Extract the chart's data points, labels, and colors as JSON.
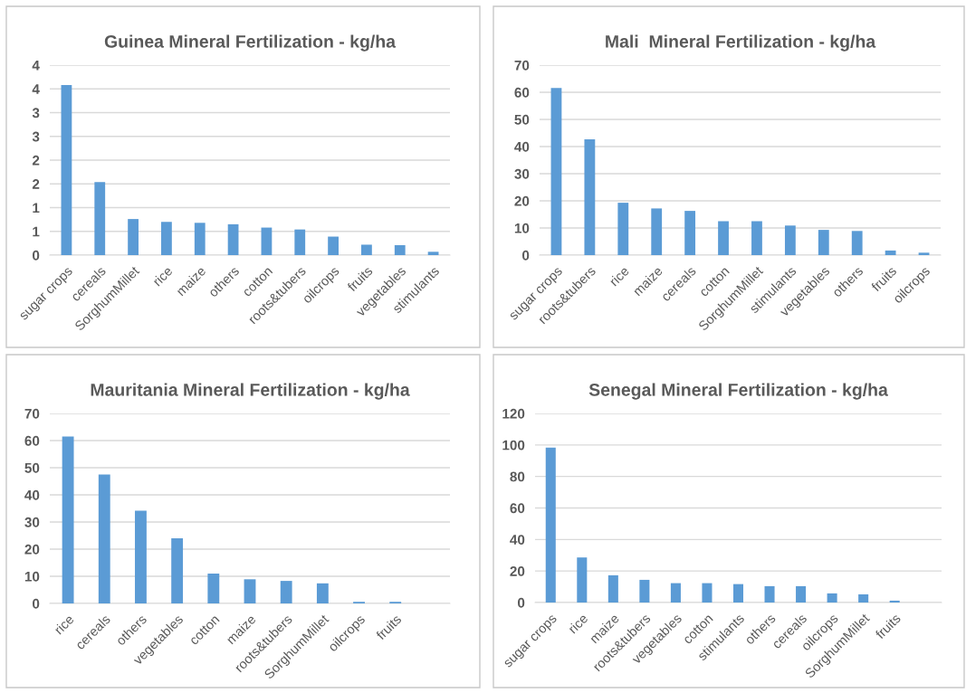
{
  "chart_data": [
    {
      "type": "bar",
      "title": "Guinea Mineral Fertilization - kg/ha",
      "categories": [
        "sugar crops",
        "cereals",
        "SorghumMillet",
        "rice",
        "maize",
        "others",
        "cotton",
        "roots&tubers",
        "oilcrops",
        "fruits",
        "vegetables",
        "stimulants"
      ],
      "values": [
        3.58,
        1.54,
        0.76,
        0.7,
        0.68,
        0.65,
        0.58,
        0.54,
        0.39,
        0.22,
        0.21,
        0.07
      ],
      "color": "#5b9bd5",
      "ylim": [
        0,
        4
      ],
      "yticks": [
        0,
        {
          "value": 0.5,
          "label": "1"
        },
        1,
        {
          "value": 1.5,
          "label": "2"
        },
        2,
        {
          "value": 2.5,
          "label": "3"
        },
        3,
        {
          "value": 3.5,
          "label": "4"
        },
        4
      ],
      "grid": "y",
      "legend": false
    },
    {
      "type": "bar",
      "title": "Mali  Mineral Fertilization - kg/ha",
      "categories": [
        "sugar crops",
        "roots&tubers",
        "rice",
        "maize",
        "cereals",
        "cotton",
        "SorghumMillet",
        "stimulants",
        "vegetables",
        "others",
        "fruits",
        "oilcrops"
      ],
      "values": [
        61.6,
        42.7,
        19.3,
        17.2,
        16.3,
        12.5,
        12.5,
        10.9,
        9.3,
        8.9,
        1.7,
        0.9
      ],
      "color": "#5b9bd5",
      "ylim": [
        0,
        70
      ],
      "yticks": [
        0,
        10,
        20,
        30,
        40,
        50,
        60,
        70
      ],
      "grid": "y",
      "legend": false
    },
    {
      "type": "bar",
      "title": "Mauritania Mineral Fertilization - kg/ha",
      "categories": [
        "rice",
        "cereals",
        "others",
        "vegetables",
        "cotton",
        "maize",
        "roots&tubers",
        "SorghumMillet",
        "oilcrops",
        "fruits",
        null
      ],
      "values": [
        61.5,
        47.5,
        34.2,
        24.0,
        11.0,
        8.9,
        8.3,
        7.4,
        0.6,
        0.6,
        null
      ],
      "color": "#5b9bd5",
      "ylim": [
        0,
        70
      ],
      "yticks": [
        0,
        10,
        20,
        30,
        40,
        50,
        60,
        70
      ],
      "grid": "y",
      "legend": false
    },
    {
      "type": "bar",
      "title": "Senegal Mineral Fertilization - kg/ha",
      "categories": [
        "sugar crops",
        "rice",
        "maize",
        "roots&tubers",
        "vegetables",
        "cotton",
        "stimulants",
        "others",
        "cereals",
        "oilcrops",
        "SorghumMillet",
        "fruits",
        null
      ],
      "values": [
        98.3,
        28.6,
        17.3,
        14.4,
        12.3,
        12.3,
        11.7,
        10.4,
        10.4,
        5.8,
        5.2,
        1.2,
        null
      ],
      "color": "#5b9bd5",
      "ylim": [
        0,
        120
      ],
      "yticks": [
        0,
        20,
        40,
        60,
        80,
        100,
        120
      ],
      "grid": "y",
      "legend": false
    }
  ]
}
